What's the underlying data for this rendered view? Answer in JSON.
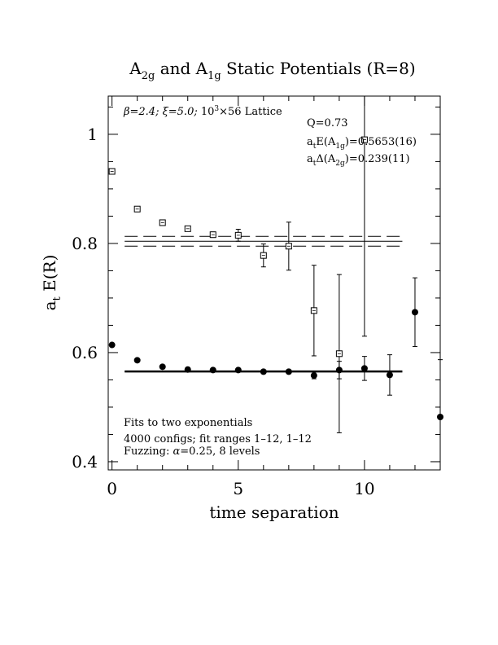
{
  "chart_data": {
    "type": "scatter",
    "title": {
      "main": "A",
      "sub1": "2g",
      "mid": " and A",
      "sub2": "1g",
      "end": " Static Potentials (R=8)"
    },
    "xlabel": "time separation",
    "ylabel": {
      "main": "a",
      "sub": "t",
      "end": " E(R)"
    },
    "xlim": [
      -0.15,
      13.0
    ],
    "ylim": [
      0.385,
      1.07
    ],
    "x_ticks": [
      0,
      5,
      10
    ],
    "y_ticks": [
      0.4,
      0.6,
      0.8,
      1.0
    ],
    "x_tick_labels": [
      "0",
      "5",
      "10"
    ],
    "y_tick_labels": [
      "0.4",
      "0.6",
      "0.8",
      "1"
    ],
    "series": [
      {
        "marker": "open-square",
        "points": [
          {
            "x": 0,
            "y": 0.932,
            "err": 0.003
          },
          {
            "x": 1,
            "y": 0.863,
            "err": 0.003
          },
          {
            "x": 2,
            "y": 0.838,
            "err": 0.003
          },
          {
            "x": 3,
            "y": 0.827,
            "err": 0.004
          },
          {
            "x": 4,
            "y": 0.816,
            "err": 0.005
          },
          {
            "x": 5,
            "y": 0.815,
            "err": 0.011
          },
          {
            "x": 6,
            "y": 0.778,
            "err": 0.021
          },
          {
            "x": 7,
            "y": 0.795,
            "err": 0.044
          },
          {
            "x": 8,
            "y": 0.677,
            "err": 0.083
          },
          {
            "x": 9,
            "y": 0.598,
            "err": 0.145
          },
          {
            "x": 10,
            "y": 0.99,
            "err": 0.36
          }
        ]
      },
      {
        "marker": "filled-circle",
        "points": [
          {
            "x": 0,
            "y": 0.614,
            "err": 0.002
          },
          {
            "x": 1,
            "y": 0.586,
            "err": 0.002
          },
          {
            "x": 2,
            "y": 0.574,
            "err": 0.002
          },
          {
            "x": 3,
            "y": 0.569,
            "err": 0.002
          },
          {
            "x": 4,
            "y": 0.568,
            "err": 0.002
          },
          {
            "x": 5,
            "y": 0.568,
            "err": 0.003
          },
          {
            "x": 6,
            "y": 0.565,
            "err": 0.003
          },
          {
            "x": 7,
            "y": 0.565,
            "err": 0.004
          },
          {
            "x": 8,
            "y": 0.558,
            "err": 0.006
          },
          {
            "x": 9,
            "y": 0.568,
            "err": 0.016
          },
          {
            "x": 10,
            "y": 0.571,
            "err": 0.022
          },
          {
            "x": 11,
            "y": 0.559,
            "err": 0.037
          },
          {
            "x": 12,
            "y": 0.674,
            "err": 0.063
          },
          {
            "x": 13,
            "y": 0.482,
            "err": 0.105
          }
        ]
      }
    ],
    "fit_lines": [
      {
        "y": 0.5653,
        "x_range": [
          0.5,
          11.5
        ],
        "style": "solid"
      },
      {
        "y": 0.813,
        "x_range": [
          0.5,
          11.5
        ],
        "style": "dashed"
      },
      {
        "y": 0.804,
        "x_range": [
          0.5,
          11.5
        ],
        "style": "solid"
      },
      {
        "y": 0.795,
        "x_range": [
          0.5,
          11.5
        ],
        "style": "dashed"
      }
    ],
    "annotations": {
      "lattice": {
        "beta": "β=2.4; ",
        "xi": "ξ=5.0; ",
        "base": "10",
        "exp": "3",
        "end": "×56 Lattice"
      },
      "q": "Q=0.73",
      "e_line": {
        "a": "a",
        "t": "t",
        "mid": "E(A",
        "sub": "1g",
        "end": ")=0.5653(16)"
      },
      "d_line": {
        "a": "a",
        "t": "t",
        "mid": "Δ(A",
        "sub": "2g",
        "end": ")=0.239(11)"
      },
      "fits": "Fits to two exponentials",
      "configs": "4000 configs; fit ranges 1–12, 1–12",
      "fuzzing": {
        "pre": "Fuzzing: ",
        "alpha": "α",
        "post": "=0.25, 8 levels"
      }
    }
  }
}
